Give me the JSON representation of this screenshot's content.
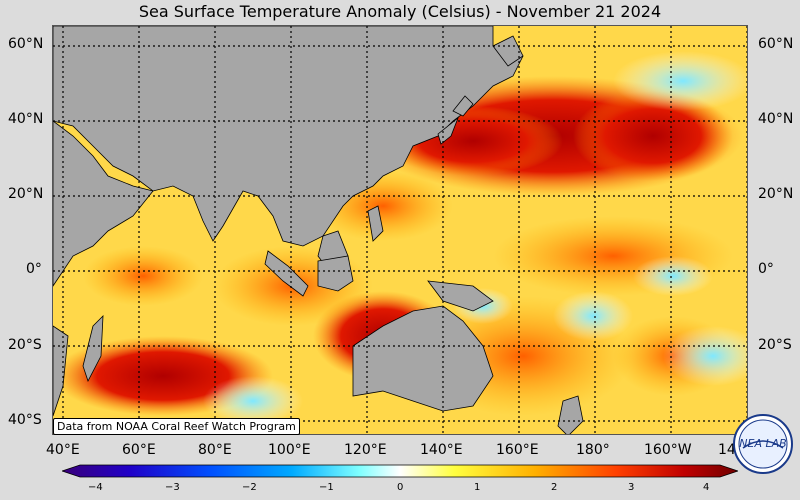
{
  "title": "Sea Surface Temperature Anomaly (Celsius) - November 21 2024",
  "credit": "Data from NOAA Coral Reef Watch Program",
  "lat_labels": [
    "60°N",
    "40°N",
    "20°N",
    "0°",
    "20°S",
    "40°S"
  ],
  "lon_labels": [
    "40°E",
    "60°E",
    "80°E",
    "100°E",
    "120°E",
    "140°E",
    "160°E",
    "180°",
    "160°W",
    "14"
  ],
  "colorbar": {
    "ticks": [
      "−4",
      "−3",
      "−2",
      "−1",
      "0",
      "1",
      "2",
      "3",
      "4"
    ],
    "colors": [
      "#3a007a",
      "#2000c8",
      "#0050ff",
      "#00aaff",
      "#80ffff",
      "#ffffff",
      "#ffff40",
      "#ffb000",
      "#ff4000",
      "#c00000",
      "#700000"
    ]
  },
  "logo_text": "NEA LAB"
}
